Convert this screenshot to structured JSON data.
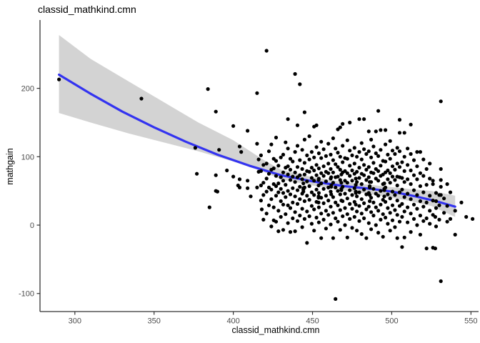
{
  "chart_data": {
    "type": "scatter",
    "title": "classid_mathkind.cmn",
    "xlabel": "classid_mathkind.cmn",
    "ylabel": "mathgain",
    "xlim": [
      278,
      553
    ],
    "ylim": [
      -126.4,
      299.9
    ],
    "x_ticks": [
      300,
      350,
      400,
      450,
      500,
      550
    ],
    "y_ticks": [
      -100,
      0,
      100,
      200
    ],
    "grid": "off",
    "legend": "none",
    "colors": {
      "point": "#000000",
      "smooth_line": "#3333F0",
      "confidence_band": "#D3D3D3",
      "axis_line": "#333333",
      "tick_label": "#4D4D4D",
      "background": "#FFFFFF"
    },
    "smooth_line": [
      [
        290,
        220
      ],
      [
        310,
        192
      ],
      [
        330,
        166
      ],
      [
        350,
        143
      ],
      [
        370,
        122
      ],
      [
        390,
        103
      ],
      [
        410,
        87
      ],
      [
        430,
        73
      ],
      [
        450,
        64
      ],
      [
        470,
        57
      ],
      [
        487,
        53
      ],
      [
        500,
        49
      ],
      [
        515,
        42
      ],
      [
        528,
        35
      ],
      [
        540,
        27
      ]
    ],
    "band_upper": [
      [
        290,
        278
      ],
      [
        310,
        243
      ],
      [
        334,
        210
      ],
      [
        356,
        180
      ],
      [
        378,
        150
      ],
      [
        400,
        124
      ],
      [
        418,
        97
      ],
      [
        430,
        81
      ],
      [
        450,
        70
      ],
      [
        470,
        63
      ],
      [
        490,
        58
      ],
      [
        510,
        53
      ],
      [
        525,
        50
      ],
      [
        540,
        43
      ]
    ],
    "band_lower": [
      [
        290,
        164
      ],
      [
        310,
        150
      ],
      [
        334,
        134
      ],
      [
        356,
        121
      ],
      [
        378,
        108
      ],
      [
        400,
        93
      ],
      [
        418,
        79
      ],
      [
        430,
        67
      ],
      [
        450,
        58
      ],
      [
        470,
        51
      ],
      [
        490,
        44
      ],
      [
        510,
        36
      ],
      [
        525,
        28
      ],
      [
        540,
        12
      ]
    ],
    "point_strips": [
      [
        290,
        [
          213
        ]
      ],
      [
        342,
        [
          185
        ]
      ],
      [
        376,
        [
          113
        ]
      ],
      [
        377,
        [
          75
        ]
      ],
      [
        384,
        [
          199
        ]
      ],
      [
        385,
        [
          26
        ]
      ],
      [
        389,
        [
          166,
          73,
          50
        ]
      ],
      [
        390,
        [
          49
        ]
      ],
      [
        391,
        [
          110
        ]
      ],
      [
        396,
        [
          80
        ]
      ],
      [
        400,
        [
          145,
          71
        ]
      ],
      [
        403,
        [
          58
        ]
      ],
      [
        404,
        [
          115,
          67,
          55
        ]
      ],
      [
        405,
        [
          107
        ]
      ],
      [
        409,
        [
          138,
          65,
          54
        ]
      ],
      [
        411,
        [
          42
        ]
      ],
      [
        415,
        [
          193,
          119,
          55
        ]
      ],
      [
        416,
        [
          96,
          78
        ]
      ],
      [
        418,
        [
          23
        ]
      ],
      [
        417.5,
        [
          36,
          58,
          79,
          102
        ]
      ],
      [
        419,
        [
          8,
          44,
          62,
          88
        ]
      ],
      [
        421,
        [
          255,
          17,
          49,
          68,
          90
        ]
      ],
      [
        422.5,
        [
          29,
          55,
          75,
          108
        ]
      ],
      [
        424,
        [
          -2,
          38,
          52,
          81,
          118
        ]
      ],
      [
        425.5,
        [
          7,
          26,
          60,
          83,
          97
        ]
      ],
      [
        427,
        [
          5,
          43,
          57,
          72,
          94,
          128
        ]
      ],
      [
        428.5,
        [
          -9,
          21,
          48,
          61,
          87
        ]
      ],
      [
        430,
        [
          12,
          35,
          53,
          70,
          99
        ]
      ],
      [
        431.5,
        [
          -7,
          30,
          47,
          65,
          77,
          103
        ]
      ],
      [
        433,
        [
          16,
          41,
          59,
          84,
          121
        ]
      ],
      [
        434.5,
        [
          3,
          29,
          50,
          74,
          86,
          112,
          155
        ]
      ],
      [
        436,
        [
          -10,
          25,
          45,
          66,
          81,
          97
        ]
      ],
      [
        437.5,
        [
          10,
          33,
          54,
          71,
          93
        ]
      ],
      [
        439,
        [
          221,
          -9,
          19,
          42,
          63,
          77,
          107
        ]
      ],
      [
        440.5,
        [
          6,
          31,
          51,
          70,
          85,
          116,
          146
        ]
      ],
      [
        442,
        [
          206,
          14,
          38,
          56,
          73,
          95
        ]
      ],
      [
        443.5,
        [
          -3,
          24,
          46,
          67,
          82,
          110
        ]
      ],
      [
        444.2,
        [
          52,
          54,
          61,
          49
        ]
      ],
      [
        445,
        [
          165,
          9,
          35,
          55,
          74,
          91,
          125
        ]
      ],
      [
        446.5,
        [
          -26,
          20,
          43,
          64,
          79,
          102
        ]
      ],
      [
        448,
        [
          13,
          37,
          57,
          78,
          96,
          130
        ]
      ],
      [
        449.5,
        [
          2,
          28,
          48,
          69,
          84,
          107
        ]
      ],
      [
        451,
        [
          -8,
          23,
          44,
          65,
          80,
          99,
          144
        ]
      ],
      [
        452.5,
        [
          11,
          34,
          52,
          73,
          88,
          114,
          146
        ]
      ],
      [
        453.8,
        [
          40,
          42,
          58,
          66,
          33
        ]
      ],
      [
        454,
        [
          4,
          26,
          47,
          68,
          83,
          105
        ]
      ],
      [
        455.5,
        [
          -19,
          17,
          40,
          61,
          76,
          98,
          122
        ]
      ],
      [
        457,
        [
          8,
          32,
          53,
          72,
          86,
          111
        ]
      ],
      [
        458.5,
        [
          -5,
          21,
          43,
          64,
          78,
          101
        ]
      ],
      [
        460,
        [
          15,
          36,
          55,
          76,
          90,
          119
        ]
      ],
      [
        461.5,
        [
          1,
          27,
          49,
          68,
          82,
          103
        ]
      ],
      [
        461.8,
        [
          56,
          58,
          45,
          70
        ]
      ],
      [
        463,
        [
          -19,
          18,
          41,
          62,
          77,
          95,
          127
        ]
      ],
      [
        464.5,
        [
          -108,
          10,
          33,
          55,
          70,
          89,
          112
        ]
      ],
      [
        466,
        [
          5,
          29,
          50,
          71,
          85,
          106,
          140
        ]
      ],
      [
        467.5,
        [
          -7,
          22,
          45,
          66,
          81,
          100,
          143
        ]
      ],
      [
        468.2,
        [
          36,
          51,
          53,
          62,
          74
        ]
      ],
      [
        469,
        [
          13,
          35,
          56,
          77,
          92,
          116,
          148
        ]
      ],
      [
        470.5,
        [
          0,
          25,
          46,
          65,
          79,
          98
        ]
      ],
      [
        472,
        [
          -18,
          16,
          39,
          62,
          76,
          97,
          124
        ]
      ],
      [
        473.5,
        [
          9,
          31,
          51,
          72,
          87,
          109,
          150
        ]
      ],
      [
        475,
        [
          -4,
          24,
          44,
          65,
          80,
          102
        ]
      ],
      [
        476.5,
        [
          12,
          34,
          54,
          75,
          90,
          113
        ]
      ],
      [
        477.3,
        [
          47,
          49,
          59,
          68,
          30
        ]
      ],
      [
        478,
        [
          -8,
          20,
          42,
          63,
          78,
          100
        ]
      ],
      [
        479.5,
        [
          6,
          28,
          48,
          69,
          84,
          107,
          155
        ]
      ],
      [
        481,
        [
          -13,
          17,
          38,
          60,
          75,
          96,
          120
        ]
      ],
      [
        482.5,
        [
          10,
          32,
          52,
          73,
          88,
          111,
          155
        ]
      ],
      [
        484,
        [
          -19,
          23,
          45,
          66,
          81,
          104
        ]
      ],
      [
        485.5,
        [
          3,
          27,
          47,
          70,
          85,
          108,
          137
        ]
      ],
      [
        486.1,
        [
          55,
          57,
          44,
          63,
          35
        ]
      ],
      [
        487,
        [
          -6,
          19,
          40,
          63,
          77,
          99,
          125
        ]
      ],
      [
        488.5,
        [
          14,
          33,
          53,
          76,
          91,
          115
        ]
      ],
      [
        490,
        [
          137,
          0,
          26,
          46,
          68,
          82,
          105
        ]
      ],
      [
        491.5,
        [
          167,
          -11,
          21,
          43,
          65,
          79,
          101
        ]
      ],
      [
        493,
        [
          8,
          30,
          50,
          72,
          87,
          110,
          139
        ]
      ],
      [
        494.5,
        [
          -17,
          16,
          37,
          60,
          74,
          94
        ]
      ],
      [
        495.3,
        [
          51,
          53,
          42,
          61
        ]
      ],
      [
        496,
        [
          139,
          11,
          34,
          55,
          77,
          93,
          118
        ]
      ],
      [
        497.5,
        [
          2,
          25,
          45,
          67,
          80,
          103
        ]
      ],
      [
        499,
        [
          123,
          -8,
          18,
          39,
          62,
          76,
          97
        ]
      ],
      [
        500.5,
        [
          7,
          29,
          49,
          71,
          86,
          109
        ]
      ],
      [
        502,
        [
          -3,
          22,
          44,
          66,
          81,
          104
        ]
      ],
      [
        503.5,
        [
          -19,
          15,
          36,
          58,
          71,
          90,
          113
        ]
      ],
      [
        505,
        [
          154,
          5,
          28,
          48,
          70,
          85,
          108,
          135
        ]
      ],
      [
        506.5,
        [
          -32,
          12,
          31,
          52,
          69,
          92
        ]
      ],
      [
        508,
        [
          -18,
          20,
          41,
          63,
          79,
          100,
          135
        ]
      ],
      [
        510,
        [
          4,
          26,
          46,
          67,
          88,
          112
        ]
      ],
      [
        512,
        [
          -10,
          17,
          38,
          60,
          80,
          104,
          147
        ]
      ],
      [
        514,
        [
          9,
          30,
          51,
          73,
          95
        ]
      ],
      [
        516,
        [
          0,
          24,
          44,
          67,
          86,
          107
        ]
      ],
      [
        518,
        [
          -14,
          14,
          35,
          57,
          76,
          107
        ]
      ],
      [
        520,
        [
          6,
          27,
          48,
          72,
          96
        ]
      ],
      [
        522,
        [
          -34,
          10,
          33,
          59,
          82
        ]
      ],
      [
        524,
        [
          2,
          21,
          43,
          68,
          90
        ]
      ],
      [
        526,
        [
          -33,
          15,
          36,
          60,
          65
        ]
      ],
      [
        527.5,
        [
          -34,
          12
        ]
      ],
      [
        528,
        [
          -2,
          25,
          47,
          35
        ]
      ],
      [
        530,
        [
          8,
          29,
          44
        ]
      ],
      [
        531,
        [
          181,
          82,
          66,
          56,
          44,
          -82
        ]
      ],
      [
        533,
        [
          18,
          39
        ]
      ],
      [
        535,
        [
          5,
          28,
          60
        ]
      ],
      [
        537,
        [
          9,
          48
        ]
      ],
      [
        540,
        [
          -14,
          21
        ]
      ],
      [
        544,
        [
          33
        ]
      ],
      [
        547,
        [
          12
        ]
      ],
      [
        551,
        [
          9
        ]
      ]
    ]
  }
}
